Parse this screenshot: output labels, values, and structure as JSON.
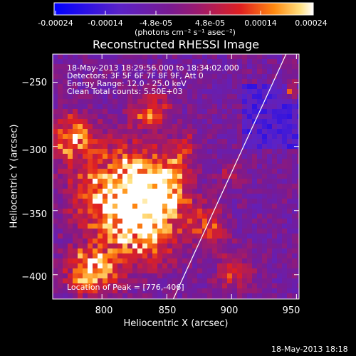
{
  "colorbar": {
    "ticks": [
      "-0.00024",
      "-0.00014",
      "-4.8e-05",
      "4.8e-05",
      "0.00014",
      "0.00024"
    ],
    "unit_label": "(photons cm⁻² s⁻¹ asec⁻²)"
  },
  "info": {
    "time_range": "18-May-2013 18:29:56.000 to 18:34:02.000",
    "detectors": "Detectors: 3F 5F 6F 7F 8F 9F, Att 0",
    "energy": "Energy Range: 12.0 - 25.0 keV",
    "clean": "Clean     Total counts: 5.50E+03",
    "peak": "Location of Peak = [776,-406]"
  },
  "footer": {
    "timestamp": "18-May-2013 18:18"
  },
  "colors": {
    "background": "#000000",
    "limb": "#ffffff"
  },
  "chart_data": {
    "type": "heatmap",
    "title": "Reconstructed RHESSI Image",
    "xlabel": "Heliocentric X (arcsec)",
    "ylabel": "Heliocentric Y (arcsec)",
    "xlim": [
      762,
      952
    ],
    "ylim": [
      -419,
      -228
    ],
    "x_ticks": [
      800,
      850,
      900,
      950
    ],
    "y_ticks": [
      -250,
      -300,
      -350,
      -400
    ],
    "y_tick_labels": [
      "−250",
      "−300",
      "−350",
      "−400"
    ],
    "colorbar_range": [
      -0.00024,
      0.00024
    ],
    "peak": [
      776,
      -406
    ],
    "limb_line": [
      [
        855,
        -419
      ],
      [
        942,
        -228
      ]
    ]
  }
}
